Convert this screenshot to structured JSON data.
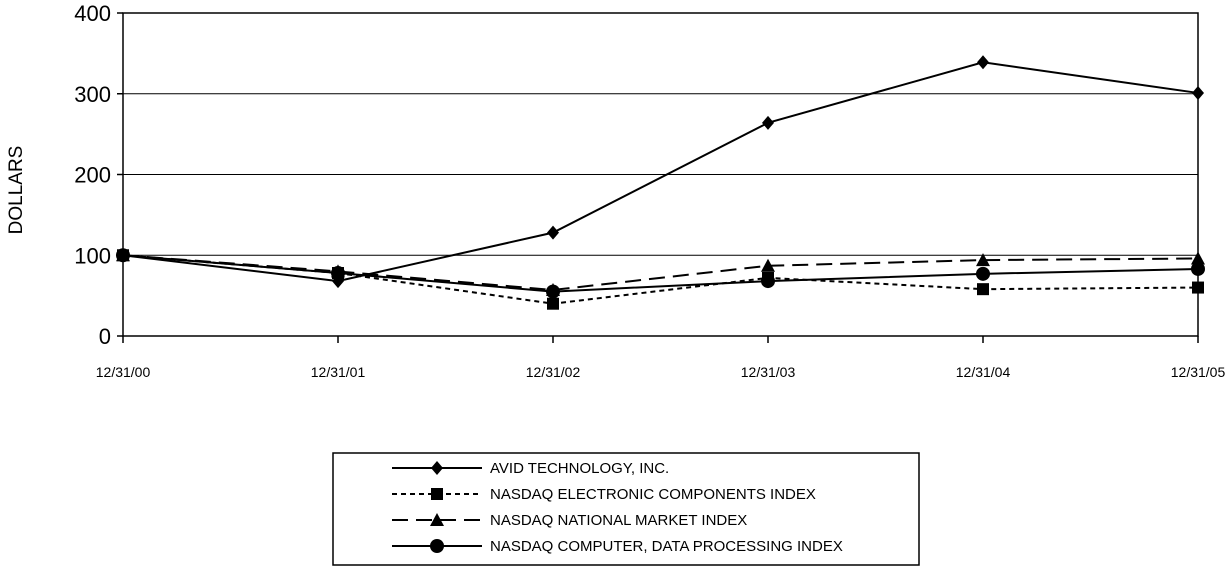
{
  "chart_data": {
    "type": "line",
    "ylabel": "DOLLARS",
    "xlabel": "",
    "title": "",
    "categories": [
      "12/31/00",
      "12/31/01",
      "12/31/02",
      "12/31/03",
      "12/31/04",
      "12/31/05"
    ],
    "ylim": [
      0,
      400
    ],
    "yticks": [
      0,
      100,
      200,
      300,
      400
    ],
    "grid": "horizontal",
    "legend_position": "bottom-center",
    "series": [
      {
        "name": "AVID TECHNOLOGY, INC.",
        "marker": "diamond",
        "dash": "solid",
        "values": [
          100,
          68,
          128,
          264,
          339,
          301
        ]
      },
      {
        "name": "NASDAQ ELECTRONIC COMPONENTS INDEX",
        "marker": "square",
        "dash": "dotted",
        "values": [
          100,
          78,
          40,
          72,
          58,
          60
        ]
      },
      {
        "name": "NASDAQ NATIONAL MARKET INDEX",
        "marker": "triangle",
        "dash": "dashed",
        "values": [
          100,
          80,
          57,
          87,
          94,
          96
        ]
      },
      {
        "name": "NASDAQ COMPUTER, DATA PROCESSING INDEX",
        "marker": "circle",
        "dash": "solid",
        "values": [
          100,
          78,
          55,
          68,
          77,
          83
        ]
      }
    ]
  }
}
